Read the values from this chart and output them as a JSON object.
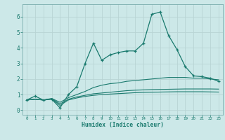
{
  "xlabel": "Humidex (Indice chaleur)",
  "bg_color": "#cce8e8",
  "grid_color": "#b8d4d4",
  "line_color": "#1a7a6e",
  "xlim": [
    -0.5,
    23.5
  ],
  "ylim": [
    -0.3,
    6.8
  ],
  "xtick_labels": [
    "0",
    "1",
    "2",
    "3",
    "4",
    "5",
    "6",
    "7",
    "8",
    "9",
    "10",
    "11",
    "12",
    "13",
    "14",
    "15",
    "16",
    "17",
    "18",
    "19",
    "20",
    "21",
    "22",
    "23"
  ],
  "yticks": [
    0,
    1,
    2,
    3,
    4,
    5,
    6
  ],
  "series": [
    [
      0.65,
      0.9,
      0.65,
      0.7,
      0.15,
      1.0,
      1.5,
      3.0,
      4.3,
      3.2,
      3.55,
      3.7,
      3.8,
      3.8,
      4.3,
      6.15,
      6.3,
      4.8,
      3.9,
      2.8,
      2.2,
      2.15,
      2.05,
      1.85
    ],
    [
      0.65,
      0.7,
      0.65,
      0.75,
      0.5,
      0.8,
      1.0,
      1.2,
      1.45,
      1.6,
      1.7,
      1.75,
      1.85,
      1.9,
      1.95,
      2.0,
      2.05,
      2.1,
      2.1,
      2.1,
      2.05,
      2.05,
      2.0,
      1.95
    ],
    [
      0.65,
      0.7,
      0.65,
      0.72,
      0.4,
      0.7,
      0.85,
      0.95,
      1.05,
      1.1,
      1.15,
      1.2,
      1.25,
      1.28,
      1.3,
      1.32,
      1.33,
      1.34,
      1.35,
      1.36,
      1.36,
      1.36,
      1.36,
      1.35
    ],
    [
      0.65,
      0.7,
      0.65,
      0.72,
      0.3,
      0.65,
      0.78,
      0.88,
      0.95,
      1.0,
      1.03,
      1.06,
      1.09,
      1.12,
      1.14,
      1.15,
      1.16,
      1.17,
      1.18,
      1.18,
      1.18,
      1.18,
      1.17,
      1.16
    ]
  ]
}
